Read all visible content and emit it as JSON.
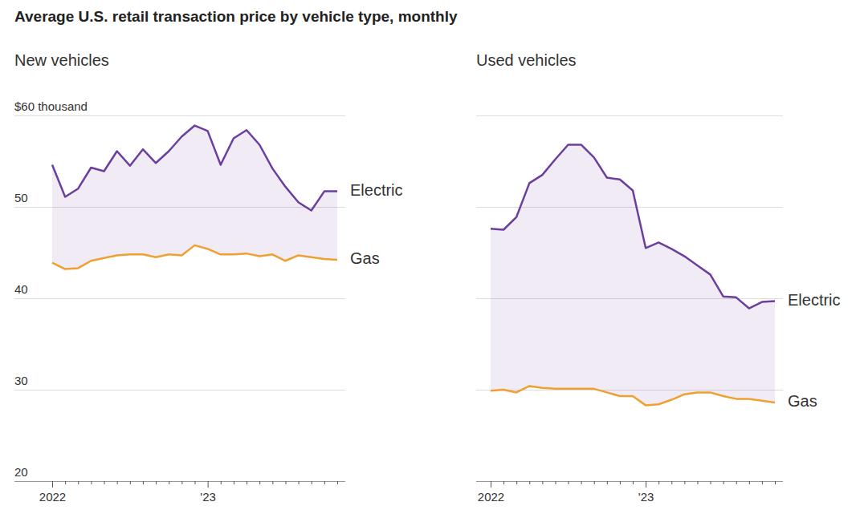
{
  "title": "Average U.S. retail transaction price by vehicle type, monthly",
  "chart_data": [
    {
      "type": "line",
      "title": "New vehicles",
      "categories": [
        "2022",
        null,
        null,
        null,
        null,
        null,
        null,
        null,
        null,
        null,
        null,
        null,
        "'23",
        null,
        null,
        null,
        null,
        null,
        null,
        null,
        null,
        null,
        null
      ],
      "ylim": [
        20,
        60
      ],
      "yticks": [
        20,
        30,
        40,
        50,
        {
          "value": 60,
          "label": "$60 thousand"
        }
      ],
      "grid": true,
      "series": [
        {
          "name": "Electric",
          "color": "#6b3fa0",
          "values": [
            54.6,
            51.1,
            52.0,
            54.3,
            53.9,
            56.1,
            54.5,
            56.3,
            54.8,
            56.1,
            57.7,
            58.9,
            58.3,
            54.6,
            57.5,
            58.4,
            56.8,
            54.2,
            52.2,
            50.5,
            49.6,
            51.7,
            51.7
          ]
        },
        {
          "name": "Gas",
          "color": "#f0a030",
          "values": [
            43.9,
            43.2,
            43.3,
            44.1,
            44.4,
            44.7,
            44.8,
            44.8,
            44.5,
            44.8,
            44.7,
            45.8,
            45.4,
            44.8,
            44.8,
            44.9,
            44.6,
            44.8,
            44.1,
            44.7,
            44.5,
            44.3,
            44.2
          ]
        }
      ]
    },
    {
      "type": "line",
      "title": "Used vehicles",
      "categories": [
        "2022",
        null,
        null,
        null,
        null,
        null,
        null,
        null,
        null,
        null,
        null,
        null,
        "'23",
        null,
        null,
        null,
        null,
        null,
        null,
        null,
        null,
        null,
        null
      ],
      "ylim": [
        20,
        60
      ],
      "yticks": [
        20,
        30,
        40,
        50,
        60
      ],
      "grid": true,
      "tick_labels": "x",
      "series": [
        {
          "name": "Electric",
          "color": "#6b3fa0",
          "values": [
            47.6,
            47.5,
            48.9,
            52.6,
            53.5,
            55.2,
            56.8,
            56.8,
            55.4,
            53.2,
            53.0,
            51.8,
            45.5,
            46.1,
            45.4,
            44.6,
            43.6,
            42.6,
            40.2,
            40.1,
            38.9,
            39.6,
            39.7
          ]
        },
        {
          "name": "Gas",
          "color": "#f0a030",
          "values": [
            29.9,
            30.0,
            29.7,
            30.4,
            30.2,
            30.1,
            30.1,
            30.1,
            30.1,
            29.7,
            29.3,
            29.3,
            28.3,
            28.4,
            28.9,
            29.5,
            29.7,
            29.7,
            29.3,
            29.0,
            29.0,
            28.8,
            28.6
          ]
        }
      ]
    }
  ]
}
